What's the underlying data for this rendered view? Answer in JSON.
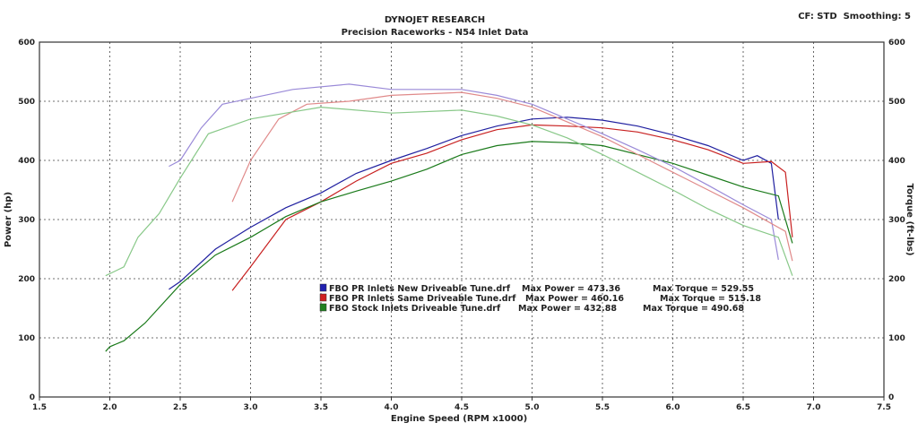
{
  "chart_data": {
    "type": "line",
    "title": "DYNOJET RESEARCH",
    "subtitle": "Precision Raceworks - N54 Inlet Data",
    "corner_note": "CF: STD  Smoothing: 5",
    "xlabel": "Engine Speed (RPM x1000)",
    "ylabel": "Power (hp)",
    "y2label": "Torque (ft-lbs)",
    "xlim": [
      1.5,
      7.5
    ],
    "ylim": [
      0,
      600
    ],
    "y2lim": [
      0,
      600
    ],
    "xticks": [
      "1.5",
      "2.0",
      "2.5",
      "3.0",
      "3.5",
      "4.0",
      "4.5",
      "5.0",
      "5.5",
      "6.0",
      "6.5",
      "7.0",
      "7.5"
    ],
    "yticks": [
      "0",
      "100",
      "200",
      "300",
      "400",
      "500",
      "600"
    ],
    "grid": true,
    "legend_placement": "center",
    "legend": [
      {
        "name": "FBO PR Inlets New Driveable Tune.drf",
        "power": "Max Power = 473.36",
        "torque": "Max Torque = 529.55",
        "color": "#2020b0"
      },
      {
        "name": "FBO PR Inlets Same Driveable Tune.drf",
        "power": "Max Power = 460.16",
        "torque": "Max Torque = 515.18",
        "color": "#d02020"
      },
      {
        "name": "FBO Stock Inlets Driveable Tune.drf",
        "power": "Max Power = 432.88",
        "torque": "Max Torque = 490.68",
        "color": "#208020"
      }
    ],
    "series": [
      {
        "run": "FBO PR Inlets New Driveable Tune.drf",
        "measure": "power",
        "color": "#2020a0",
        "x": [
          2.42,
          2.5,
          2.75,
          3.0,
          3.25,
          3.5,
          3.75,
          4.0,
          4.25,
          4.5,
          4.75,
          5.0,
          5.25,
          5.5,
          5.75,
          6.0,
          6.25,
          6.5,
          6.6,
          6.7,
          6.75
        ],
        "y": [
          182,
          195,
          250,
          287,
          320,
          345,
          378,
          400,
          420,
          442,
          458,
          470,
          473,
          468,
          458,
          443,
          425,
          400,
          408,
          395,
          300
        ]
      },
      {
        "run": "FBO PR Inlets Same Driveable Tune.drf",
        "measure": "power",
        "color": "#c82020",
        "x": [
          2.87,
          3.0,
          3.25,
          3.5,
          3.75,
          4.0,
          4.25,
          4.5,
          4.75,
          5.0,
          5.25,
          5.5,
          5.75,
          6.0,
          6.25,
          6.5,
          6.7,
          6.8,
          6.85
        ],
        "y": [
          180,
          220,
          300,
          330,
          365,
          395,
          412,
          435,
          452,
          460,
          458,
          455,
          448,
          435,
          418,
          395,
          398,
          380,
          270
        ]
      },
      {
        "run": "FBO Stock Inlets Driveable Tune.drf",
        "measure": "power",
        "color": "#1a7a1a",
        "x": [
          1.97,
          2.0,
          2.1,
          2.25,
          2.5,
          2.75,
          3.0,
          3.25,
          3.5,
          3.75,
          4.0,
          4.25,
          4.5,
          4.75,
          5.0,
          5.25,
          5.5,
          5.75,
          6.0,
          6.25,
          6.5,
          6.75,
          6.85
        ],
        "y": [
          77,
          85,
          95,
          125,
          190,
          240,
          270,
          305,
          330,
          348,
          365,
          385,
          410,
          425,
          432,
          430,
          425,
          410,
          395,
          375,
          355,
          340,
          260
        ]
      },
      {
        "run": "FBO PR Inlets New Driveable Tune.drf",
        "measure": "torque",
        "color": "#9a8ad8",
        "x": [
          2.42,
          2.5,
          2.65,
          2.8,
          3.0,
          3.3,
          3.7,
          4.0,
          4.5,
          4.75,
          5.0,
          5.25,
          5.5,
          5.75,
          6.0,
          6.25,
          6.5,
          6.7,
          6.75
        ],
        "y": [
          390,
          400,
          455,
          495,
          505,
          520,
          529,
          520,
          520,
          510,
          495,
          470,
          445,
          418,
          390,
          358,
          325,
          300,
          232
        ]
      },
      {
        "run": "FBO PR Inlets Same Driveable Tune.drf",
        "measure": "torque",
        "color": "#e08a8a",
        "x": [
          2.87,
          3.0,
          3.2,
          3.4,
          3.7,
          4.0,
          4.5,
          4.75,
          5.0,
          5.25,
          5.5,
          5.75,
          6.0,
          6.25,
          6.5,
          6.8,
          6.85
        ],
        "y": [
          330,
          400,
          470,
          495,
          500,
          510,
          515,
          505,
          490,
          465,
          440,
          410,
          380,
          350,
          320,
          280,
          230
        ]
      },
      {
        "run": "FBO Stock Inlets Driveable Tune.drf",
        "measure": "torque",
        "color": "#88c888",
        "x": [
          1.97,
          2.1,
          2.2,
          2.35,
          2.5,
          2.7,
          3.0,
          3.25,
          3.5,
          4.0,
          4.5,
          4.75,
          5.0,
          5.25,
          5.5,
          5.75,
          6.0,
          6.25,
          6.5,
          6.75,
          6.85
        ],
        "y": [
          205,
          220,
          270,
          310,
          370,
          445,
          470,
          480,
          490,
          480,
          485,
          475,
          460,
          438,
          410,
          380,
          350,
          318,
          290,
          270,
          205
        ]
      }
    ]
  }
}
